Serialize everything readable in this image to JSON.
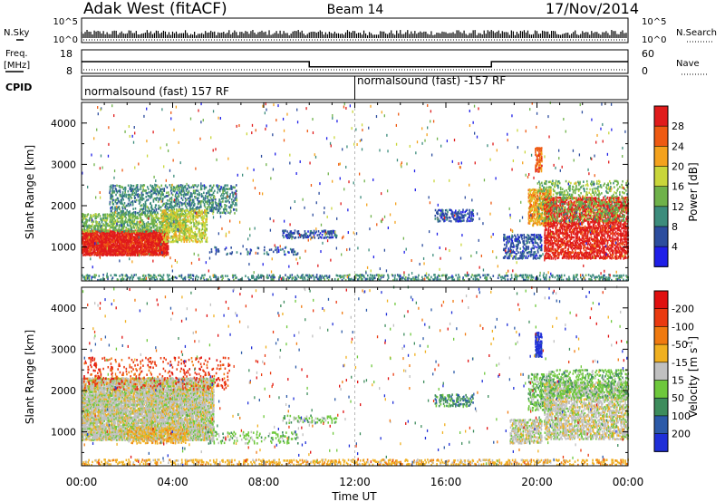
{
  "header": {
    "station": "Adak West (fitACF)",
    "beam": "Beam 14",
    "date": "17/Nov/2014"
  },
  "noise_panel": {
    "left_label": "N.Sky",
    "right_label": "N.Search",
    "left_ticks": [
      "10^5",
      "10^0"
    ],
    "right_ticks": [
      "10^5",
      "10^0"
    ]
  },
  "freq_panel": {
    "left_label_1": "Freq.",
    "left_label_2": "[MHz]",
    "right_label": "Nave",
    "left_ticks": [
      "18",
      "8"
    ],
    "right_ticks": [
      "60",
      "0"
    ],
    "freq_steps": [
      {
        "t0": 0,
        "t1": 10,
        "f": 13
      },
      {
        "t0": 10,
        "t1": 18,
        "f": 10.8
      },
      {
        "t0": 18,
        "t1": 24,
        "f": 13
      }
    ]
  },
  "cpid_panel": {
    "label": "CPID",
    "segments": [
      {
        "t0": 0,
        "t1": 12,
        "name": "normalsound (fast) 157 RF"
      },
      {
        "t0": 12,
        "t1": 24,
        "name": "normalsound (fast) -157 RF"
      }
    ]
  },
  "chart_data": [
    {
      "type": "heatmap",
      "name": "power",
      "ylabel": "Slant Range [km]",
      "ylim": [
        180,
        4500
      ],
      "yticks": [
        1000,
        2000,
        3000,
        4000
      ],
      "xlim": [
        0,
        24
      ],
      "colorbar": {
        "label": "Power [dB]",
        "ticks": [
          4,
          8,
          12,
          16,
          20,
          24,
          28
        ],
        "colors": [
          "#1f1fe8",
          "#2c4d9e",
          "#3c8c7c",
          "#6fb24a",
          "#c9d63a",
          "#f4a21d",
          "#ee5a12",
          "#e01b1b"
        ]
      },
      "features": [
        {
          "t0": 0.0,
          "t1": 3.8,
          "r0": 780,
          "r1": 1400,
          "c": 7,
          "d": 0.95
        },
        {
          "t0": 0.0,
          "t1": 4.6,
          "r0": 1350,
          "r1": 1800,
          "c": 3,
          "d": 0.5
        },
        {
          "t0": 1.2,
          "t1": 6.8,
          "r0": 1800,
          "r1": 2500,
          "c": 2,
          "d": 0.35
        },
        {
          "t0": 3.5,
          "t1": 5.5,
          "r0": 1100,
          "r1": 1900,
          "c": 4,
          "d": 0.5
        },
        {
          "t0": 5.5,
          "t1": 9.5,
          "r0": 800,
          "r1": 1000,
          "c": 1,
          "d": 0.15
        },
        {
          "t0": 8.8,
          "t1": 11.2,
          "r0": 1200,
          "r1": 1400,
          "c": 1,
          "d": 0.45
        },
        {
          "t0": 15.5,
          "t1": 17.2,
          "r0": 1600,
          "r1": 1900,
          "c": 1,
          "d": 0.4
        },
        {
          "t0": 18.5,
          "t1": 20.2,
          "r0": 700,
          "r1": 1300,
          "c": 1,
          "d": 0.45
        },
        {
          "t0": 19.6,
          "t1": 20.6,
          "r0": 1500,
          "r1": 2400,
          "c": 5,
          "d": 0.7
        },
        {
          "t0": 19.9,
          "t1": 20.2,
          "r0": 2800,
          "r1": 3400,
          "c": 6,
          "d": 0.6
        },
        {
          "t0": 20.3,
          "t1": 24.0,
          "r0": 700,
          "r1": 2200,
          "c": 7,
          "d": 0.6
        },
        {
          "t0": 20.0,
          "t1": 24.0,
          "r0": 1600,
          "r1": 2600,
          "c": 3,
          "d": 0.25
        },
        {
          "t0": 0.0,
          "t1": 24.0,
          "r0": 180,
          "r1": 330,
          "c": 2,
          "d": 0.35
        }
      ]
    },
    {
      "type": "heatmap",
      "name": "velocity",
      "ylabel": "Slant Range [km]",
      "ylim": [
        180,
        4500
      ],
      "yticks": [
        1000,
        2000,
        3000,
        4000
      ],
      "xlim": [
        0,
        24
      ],
      "xticks": [
        "00:00",
        "04:00",
        "08:00",
        "12:00",
        "16:00",
        "20:00",
        "00:00"
      ],
      "xlabel": "Time UT",
      "colorbar": {
        "label": "Velocity [m s^-1]",
        "ticks": [
          200,
          100,
          50,
          15,
          -15,
          -50,
          -100,
          -200
        ],
        "colors": [
          "#1f2fd8",
          "#2c5aa8",
          "#3d8c5c",
          "#6ec83c",
          "#c0c0c0",
          "#f0b020",
          "#f07a10",
          "#ea3a10",
          "#e01010"
        ]
      },
      "features": [
        {
          "t0": 0.0,
          "t1": 5.8,
          "r0": 780,
          "r1": 2300,
          "c": 4,
          "d": 0.85
        },
        {
          "t0": 2.0,
          "t1": 4.6,
          "r0": 700,
          "r1": 1100,
          "c": 5,
          "d": 0.4
        },
        {
          "t0": 0.0,
          "t1": 6.5,
          "r0": 2000,
          "r1": 2800,
          "c": 7,
          "d": 0.12
        },
        {
          "t0": 5.5,
          "t1": 9.5,
          "r0": 700,
          "r1": 1000,
          "c": 3,
          "d": 0.18
        },
        {
          "t0": 8.8,
          "t1": 11.2,
          "r0": 1200,
          "r1": 1400,
          "c": 3,
          "d": 0.3
        },
        {
          "t0": 15.5,
          "t1": 17.2,
          "r0": 1600,
          "r1": 1900,
          "c": 2,
          "d": 0.35
        },
        {
          "t0": 19.9,
          "t1": 20.2,
          "r0": 2800,
          "r1": 3400,
          "c": 0,
          "d": 0.8
        },
        {
          "t0": 18.8,
          "t1": 20.2,
          "r0": 700,
          "r1": 1300,
          "c": 4,
          "d": 0.6
        },
        {
          "t0": 19.6,
          "t1": 20.6,
          "r0": 1500,
          "r1": 2400,
          "c": 3,
          "d": 0.45
        },
        {
          "t0": 20.3,
          "t1": 24.0,
          "r0": 800,
          "r1": 2200,
          "c": 4,
          "d": 0.55
        },
        {
          "t0": 20.5,
          "t1": 24.0,
          "r0": 1800,
          "r1": 2500,
          "c": 3,
          "d": 0.35
        },
        {
          "t0": 0.0,
          "t1": 24.0,
          "r0": 180,
          "r1": 330,
          "c": 5,
          "d": 0.35
        }
      ]
    }
  ]
}
